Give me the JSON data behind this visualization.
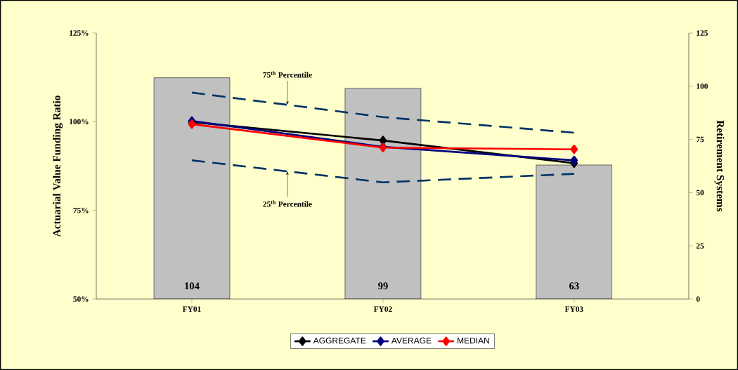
{
  "chart_data": {
    "type": "line",
    "categories": [
      "FY01",
      "FY02",
      "FY03"
    ],
    "xlabel": null,
    "ylabel": "Actuarial Value Funding Ratio",
    "y2label": "Retirement Systems",
    "ylim": [
      50,
      125
    ],
    "yticks": [
      {
        "value": 50,
        "label": "50%"
      },
      {
        "value": 75,
        "label": "75%"
      },
      {
        "value": 100,
        "label": "100%"
      },
      {
        "value": 125,
        "label": "125%"
      }
    ],
    "y2lim": [
      0,
      125
    ],
    "y2ticks": [
      0,
      25,
      50,
      75,
      100,
      125
    ],
    "series": [
      {
        "type": "bar",
        "axis": "y2",
        "color": "#c0c0c0",
        "values": [
          104,
          99,
          63
        ],
        "value_labels": [
          "104",
          "99",
          "63"
        ]
      },
      {
        "name": "AGGREGATE",
        "color": "#000000",
        "values": [
          99.9,
          94.7,
          88.3
        ],
        "marker": "diamond",
        "line_style": "solid"
      },
      {
        "name": "AVERAGE",
        "color": "#000080",
        "values": [
          100.2,
          92.9,
          89.1
        ],
        "marker": "diamond",
        "line_style": "solid"
      },
      {
        "name": "MEDIAN",
        "color": "#ff0000",
        "values": [
          99.3,
          92.7,
          92.2
        ],
        "marker": "diamond",
        "line_style": "solid"
      },
      {
        "color": "#003366",
        "values": [
          108.2,
          101.3,
          96.9
        ],
        "marker": "none",
        "line_style": "dashed"
      },
      {
        "color": "#003366",
        "values": [
          89.1,
          82.9,
          85.3
        ],
        "marker": "none",
        "line_style": "dashed"
      }
    ],
    "annotations": [
      {
        "text": "75$^{th}$ Percentile",
        "y": 104.8
      },
      {
        "text": "25$^{th}$ Percentile",
        "y": 86.0
      }
    ],
    "legend": "bottom",
    "grid": false
  }
}
